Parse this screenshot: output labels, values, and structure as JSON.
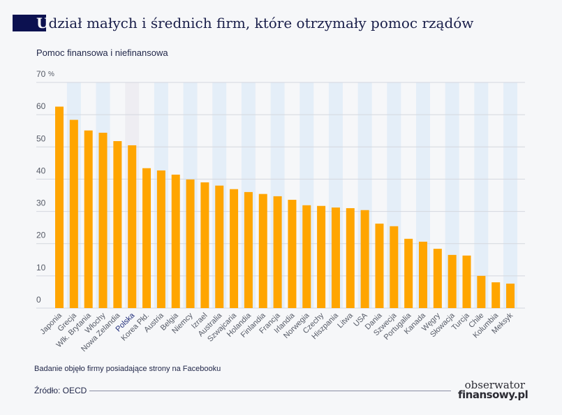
{
  "header": {
    "title_first_letter": "U",
    "title_rest": "dział małych i średnich firm, które otrzymały pomoc rządów",
    "subtitle": "Pomoc finansowa i niefinansowa"
  },
  "footer": {
    "note": "Badanie objęło firmy posiadające strony na Facebooku",
    "source": "Źródło: OECD",
    "logo_line1": "obserwator",
    "logo_line2": "finansowy.pl"
  },
  "chart_data": {
    "type": "bar",
    "title": "Udział małych i średnich firm, które otrzymały pomoc rządów",
    "subtitle": "Pomoc finansowa i niefinansowa",
    "ylim": [
      0,
      70
    ],
    "yticks": [
      0,
      10,
      20,
      30,
      40,
      50,
      60,
      70
    ],
    "ytick_labels": [
      "0",
      "10",
      "20",
      "30",
      "40",
      "50",
      "60",
      "70"
    ],
    "yunit": "%",
    "grid": true,
    "categories": [
      "Japonia",
      "Grecja",
      "Wlk. Brytania",
      "Włochy",
      "Nowa Zelandia",
      "Polska",
      "Korea Płd.",
      "Austria",
      "Belgia",
      "Niemcy",
      "Izrael",
      "Australia",
      "Szwajcaria",
      "Holandia",
      "Finlandia",
      "Francja",
      "Irlandia",
      "Norwegia",
      "Czechy",
      "Hiszpania",
      "Litwa",
      "USA",
      "Dania",
      "Szwecja",
      "Portugalia",
      "Kanada",
      "Węgry",
      "Słowacja",
      "Turcja",
      "Chile",
      "Kolumbia",
      "Meksyk"
    ],
    "values": [
      62.5,
      58.4,
      55.1,
      54.4,
      51.8,
      50.5,
      43.4,
      42.7,
      41.4,
      39.9,
      39.0,
      38.0,
      36.9,
      36.0,
      35.4,
      34.7,
      33.6,
      31.9,
      31.7,
      31.2,
      31.0,
      30.4,
      26.2,
      25.4,
      21.5,
      20.6,
      18.4,
      16.5,
      16.3,
      10.0,
      8.0,
      7.6
    ],
    "highlight": "Polska",
    "colors": {
      "bar": "#ffa500",
      "band": "#e4eef8",
      "highlight_band": "#eeedf2",
      "highlight_label": "#1c2a78",
      "label": "#555a66",
      "grid": "#d4d7de",
      "title_box": "#0c1150"
    }
  }
}
